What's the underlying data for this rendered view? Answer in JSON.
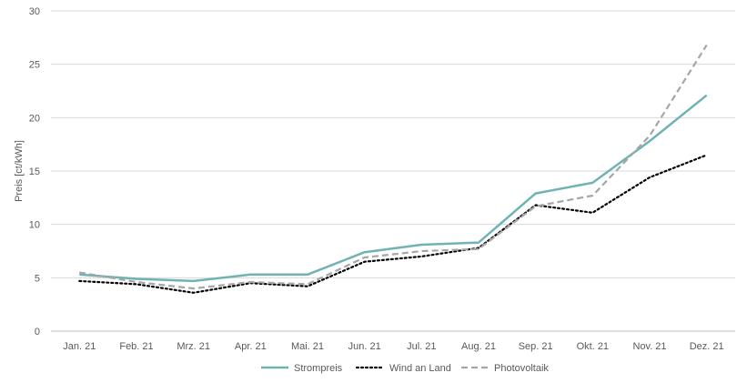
{
  "chart_data": {
    "type": "line",
    "title": "",
    "xlabel": "",
    "ylabel": "Preis [ct/kWh]",
    "categories": [
      "Jan. 21",
      "Feb. 21",
      "Mrz. 21",
      "Apr. 21",
      "Mai. 21",
      "Jun. 21",
      "Jul. 21",
      "Aug. 21",
      "Sep. 21",
      "Okt. 21",
      "Nov. 21",
      "Dez. 21"
    ],
    "ylim": [
      0,
      30
    ],
    "yticks": [
      0,
      5,
      10,
      15,
      20,
      25,
      30
    ],
    "grid": true,
    "legend_position": "bottom",
    "series": [
      {
        "name": "Strompreis",
        "style": "solid",
        "color": "#6fb3b3",
        "values": [
          5.3,
          4.9,
          4.7,
          5.3,
          5.3,
          7.4,
          8.1,
          8.3,
          12.9,
          13.9,
          17.8,
          22.1
        ]
      },
      {
        "name": "Wind an Land",
        "style": "dotted",
        "color": "#000000",
        "values": [
          4.7,
          4.4,
          3.6,
          4.5,
          4.2,
          6.5,
          7.0,
          7.8,
          11.8,
          11.1,
          14.4,
          16.5
        ]
      },
      {
        "name": "Photovoltaik",
        "style": "dashed",
        "color": "#a6a6a6",
        "values": [
          5.5,
          4.6,
          4.0,
          4.6,
          4.4,
          6.9,
          7.5,
          7.7,
          11.7,
          12.7,
          18.3,
          26.8
        ]
      }
    ]
  }
}
